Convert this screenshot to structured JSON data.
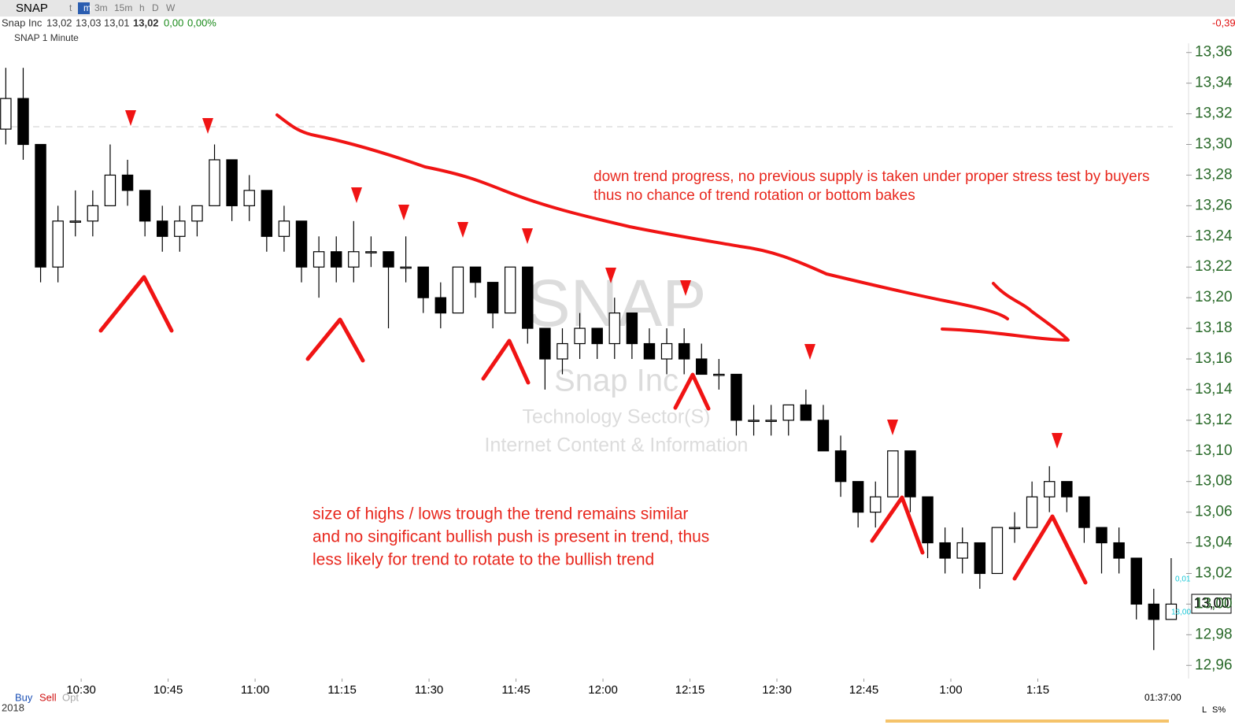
{
  "header": {
    "symbol": "SNAP",
    "timeframes": [
      "t",
      "m",
      "3m",
      "15m",
      "h",
      "D",
      "W"
    ],
    "name": "Snap Inc",
    "open": "13,02",
    "high": "13,03",
    "low": "13,01",
    "last": "13,02",
    "change": "0,00",
    "change_pct": "0,00%",
    "day_change": "-0,39",
    "chart_label": "SNAP 1 Minute"
  },
  "watermark": {
    "symbol": "SNAP",
    "name": "Snap Inc",
    "sector": "Technology Sector(S)",
    "industry": "Internet Content & Information"
  },
  "annotations": {
    "trend": [
      "down trend progress, no previous supply is taken under proper stress test by buyers",
      "thus no chance of trend rotation or bottom bakes"
    ],
    "swings": [
      "size of highs / lows trough the trend remains similar",
      "and no singificant bullish push is present in trend, thus",
      "less likely for trend to rotate to the bullish trend"
    ]
  },
  "price_box": {
    "last": "13,00",
    "bid": "0,01",
    "ask": "13,00"
  },
  "footer": {
    "buy": "Buy",
    "sell": "Sell",
    "opt": "Opt",
    "year": "2018",
    "time": "01:37:00",
    "l": "L",
    "s": "S%"
  },
  "chart_data": {
    "type": "candlestick",
    "x": [
      617,
      620,
      623,
      626,
      629,
      632,
      635,
      638,
      641,
      644,
      647,
      650,
      653,
      656,
      659,
      662,
      665,
      668,
      671,
      674,
      677,
      680,
      683,
      686,
      689,
      692,
      695,
      698,
      701,
      704,
      707,
      710,
      713,
      716,
      719,
      722,
      725,
      728,
      731,
      734,
      737,
      740,
      743,
      746,
      749,
      752,
      755,
      758,
      761,
      764,
      767,
      770,
      773,
      776,
      779,
      782,
      785,
      788,
      791,
      794,
      797,
      800,
      803,
      806,
      809,
      812,
      815,
      818
    ],
    "open": [
      13.31,
      13.33,
      13.3,
      13.22,
      13.25,
      13.25,
      13.26,
      13.28,
      13.27,
      13.25,
      13.24,
      13.25,
      13.26,
      13.29,
      13.26,
      13.27,
      13.24,
      13.25,
      13.22,
      13.23,
      13.22,
      13.23,
      13.23,
      13.22,
      13.22,
      13.2,
      13.19,
      13.22,
      13.21,
      13.19,
      13.22,
      13.18,
      13.16,
      13.17,
      13.18,
      13.17,
      13.19,
      13.17,
      13.16,
      13.17,
      13.16,
      13.15,
      13.15,
      13.12,
      13.12,
      13.12,
      13.13,
      13.12,
      13.1,
      13.08,
      13.06,
      13.07,
      13.1,
      13.07,
      13.04,
      13.03,
      13.04,
      13.02,
      13.05,
      13.05,
      13.07,
      13.08,
      13.07,
      13.05,
      13.04,
      13.03,
      13.0,
      12.99
    ],
    "high": [
      13.35,
      13.35,
      13.3,
      13.26,
      13.27,
      13.27,
      13.3,
      13.29,
      13.27,
      13.26,
      13.26,
      13.26,
      13.3,
      13.29,
      13.28,
      13.27,
      13.26,
      13.25,
      13.24,
      13.24,
      13.25,
      13.24,
      13.23,
      13.24,
      13.22,
      13.21,
      13.22,
      13.22,
      13.21,
      13.22,
      13.22,
      13.18,
      13.18,
      13.19,
      13.18,
      13.2,
      13.19,
      13.18,
      13.18,
      13.18,
      13.17,
      13.16,
      13.15,
      13.13,
      13.13,
      13.13,
      13.14,
      13.13,
      13.11,
      13.08,
      13.08,
      13.1,
      13.1,
      13.07,
      13.05,
      13.05,
      13.04,
      13.05,
      13.06,
      13.08,
      13.09,
      13.08,
      13.07,
      13.05,
      13.05,
      13.03,
      13.01,
      13.03
    ],
    "low": [
      13.3,
      13.29,
      13.21,
      13.21,
      13.24,
      13.24,
      13.26,
      13.26,
      13.24,
      13.23,
      13.23,
      13.24,
      13.26,
      13.25,
      13.25,
      13.23,
      13.23,
      13.21,
      13.2,
      13.21,
      13.21,
      13.22,
      13.18,
      13.21,
      13.19,
      13.18,
      13.19,
      13.2,
      13.18,
      13.19,
      13.17,
      13.14,
      13.15,
      13.16,
      13.16,
      13.16,
      13.16,
      13.16,
      13.15,
      13.15,
      13.15,
      13.14,
      13.11,
      13.11,
      13.11,
      13.11,
      13.12,
      13.1,
      13.07,
      13.05,
      13.05,
      13.07,
      13.06,
      13.03,
      13.02,
      13.02,
      13.01,
      13.02,
      13.04,
      13.05,
      13.06,
      13.06,
      13.04,
      13.02,
      13.02,
      12.99,
      12.97,
      12.99
    ],
    "close": [
      13.33,
      13.3,
      13.22,
      13.25,
      13.25,
      13.26,
      13.28,
      13.27,
      13.25,
      13.24,
      13.25,
      13.26,
      13.29,
      13.26,
      13.27,
      13.24,
      13.25,
      13.22,
      13.23,
      13.22,
      13.23,
      13.23,
      13.22,
      13.22,
      13.2,
      13.19,
      13.22,
      13.21,
      13.19,
      13.22,
      13.18,
      13.16,
      13.17,
      13.18,
      13.17,
      13.19,
      13.17,
      13.16,
      13.17,
      13.16,
      13.15,
      13.15,
      13.12,
      13.12,
      13.12,
      13.13,
      13.12,
      13.1,
      13.08,
      13.06,
      13.07,
      13.1,
      13.07,
      13.04,
      13.03,
      13.04,
      13.02,
      13.05,
      13.05,
      13.07,
      13.08,
      13.07,
      13.05,
      13.04,
      13.03,
      13.0,
      12.99,
      13.0
    ],
    "up_color": "#ffffff",
    "down_color": "#000000",
    "xlim": [
      616,
      821
    ],
    "xticks": [
      {
        "value": 630,
        "label": "10:30"
      },
      {
        "value": 645,
        "label": "10:45"
      },
      {
        "value": 660,
        "label": "11:00"
      },
      {
        "value": 675,
        "label": "11:15"
      },
      {
        "value": 690,
        "label": "11:30"
      },
      {
        "value": 705,
        "label": "11:45"
      },
      {
        "value": 720,
        "label": "12:00"
      },
      {
        "value": 735,
        "label": "12:15"
      },
      {
        "value": 750,
        "label": "12:30"
      },
      {
        "value": 765,
        "label": "12:45"
      },
      {
        "value": 780,
        "label": "1:00"
      },
      {
        "value": 795,
        "label": "1:15"
      }
    ],
    "ylim": [
      12.955,
      13.365
    ],
    "yticks": [
      {
        "value": 13.36,
        "label": "13,36"
      },
      {
        "value": 13.34,
        "label": "13,34"
      },
      {
        "value": 13.32,
        "label": "13,32"
      },
      {
        "value": 13.3,
        "label": "13,30"
      },
      {
        "value": 13.28,
        "label": "13,28"
      },
      {
        "value": 13.26,
        "label": "13,26"
      },
      {
        "value": 13.24,
        "label": "13,24"
      },
      {
        "value": 13.22,
        "label": "13,22"
      },
      {
        "value": 13.2,
        "label": "13,20"
      },
      {
        "value": 13.18,
        "label": "13,18"
      },
      {
        "value": 13.16,
        "label": "13,16"
      },
      {
        "value": 13.14,
        "label": "13,14"
      },
      {
        "value": 13.12,
        "label": "13,12"
      },
      {
        "value": 13.1,
        "label": "13,10"
      },
      {
        "value": 13.08,
        "label": "13,08"
      },
      {
        "value": 13.06,
        "label": "13,06"
      },
      {
        "value": 13.04,
        "label": "13,04"
      },
      {
        "value": 13.02,
        "label": "13,02"
      },
      {
        "value": 13.0,
        "label": "13,00"
      },
      {
        "value": 12.98,
        "label": "12,98"
      },
      {
        "value": 12.96,
        "label": "12,96"
      }
    ]
  }
}
